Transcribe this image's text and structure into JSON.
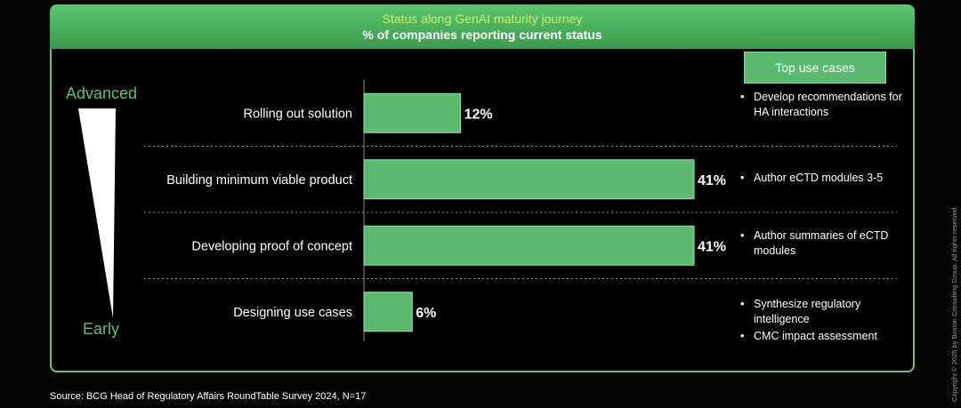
{
  "header": {
    "title": "Status along GenAI maturity journey",
    "subtitle": "% of companies reporting current status"
  },
  "scale": {
    "top_label": "Advanced",
    "bottom_label": "Early"
  },
  "chart_data": {
    "type": "bar",
    "orientation": "horizontal",
    "categories": [
      "Rolling out solution",
      "Building minimum viable product",
      "Developing proof of concept",
      "Designing use cases"
    ],
    "values": [
      12,
      41,
      41,
      6
    ],
    "value_labels": [
      "12%",
      "41%",
      "41%",
      "6%"
    ],
    "unit": "%",
    "bar_color": "#5cba70",
    "grid": false,
    "xlim": [
      0,
      41
    ]
  },
  "use_cases": {
    "heading": "Top use cases",
    "groups": [
      [
        "Develop recommendations for HA interactions"
      ],
      [
        "Author eCTD modules 3-5"
      ],
      [
        "Author summaries of eCTD modules"
      ],
      [
        "Synthesize regulatory intelligence",
        "CMC impact assessment"
      ]
    ]
  },
  "source": "Source: BCG Head of Regulatory Affairs RoundTable Survey 2024, N=17",
  "copyright": "Copyright © 2025 by Boston Consulting Group. All rights reserved.",
  "colors": {
    "accent": "#5cba70",
    "header_title": "#c9f06b",
    "scale_label": "#5fbf72"
  }
}
